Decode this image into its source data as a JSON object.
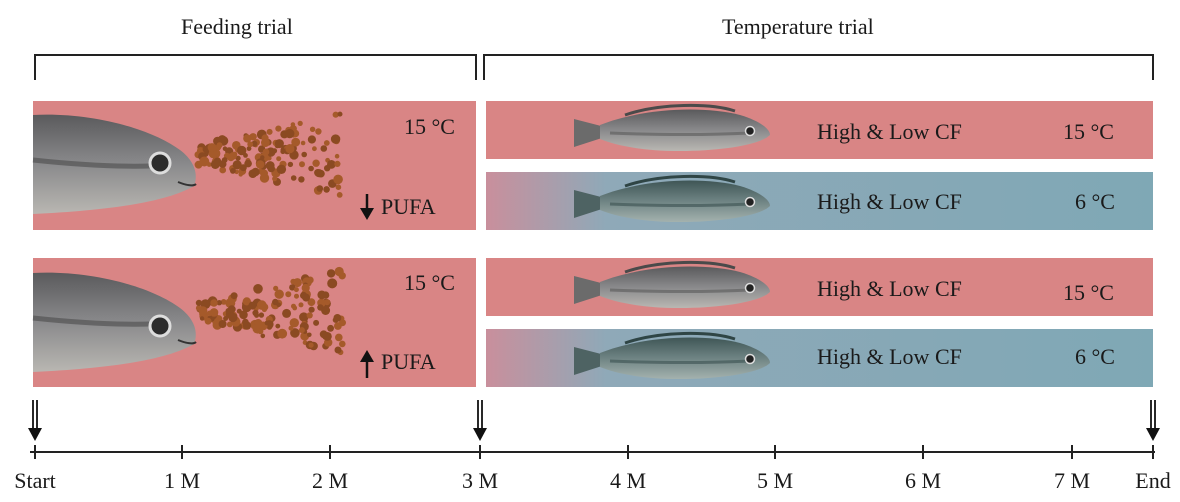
{
  "phases": {
    "feeding": {
      "title": "Feeding trial"
    },
    "temperature": {
      "title": "Temperature trial"
    }
  },
  "feeding_panels": [
    {
      "temperature": "15 °C",
      "pufa_label": "PUFA",
      "pufa_direction": "down",
      "color": "#d98585"
    },
    {
      "temperature": "15 °C",
      "pufa_label": "PUFA",
      "pufa_direction": "up",
      "color": "#d98585"
    }
  ],
  "temperature_panels": [
    {
      "label": "High & Low CF",
      "temperature": "15 °C",
      "color": "#d98585"
    },
    {
      "label": "High & Low CF",
      "temperature": "6 °C",
      "color": "#7fa8b5"
    },
    {
      "label": "High & Low CF",
      "temperature": "15 °C",
      "color": "#d98585"
    },
    {
      "label": "High & Low CF",
      "temperature": "6 °C",
      "color": "#7fa8b5"
    }
  ],
  "timeline": {
    "ticks": [
      "Start",
      "1 M",
      "2 M",
      "3 M",
      "4 M",
      "5 M",
      "6 M",
      "7 M",
      "End"
    ],
    "markers": [
      "Start",
      "3 M",
      "End"
    ]
  }
}
